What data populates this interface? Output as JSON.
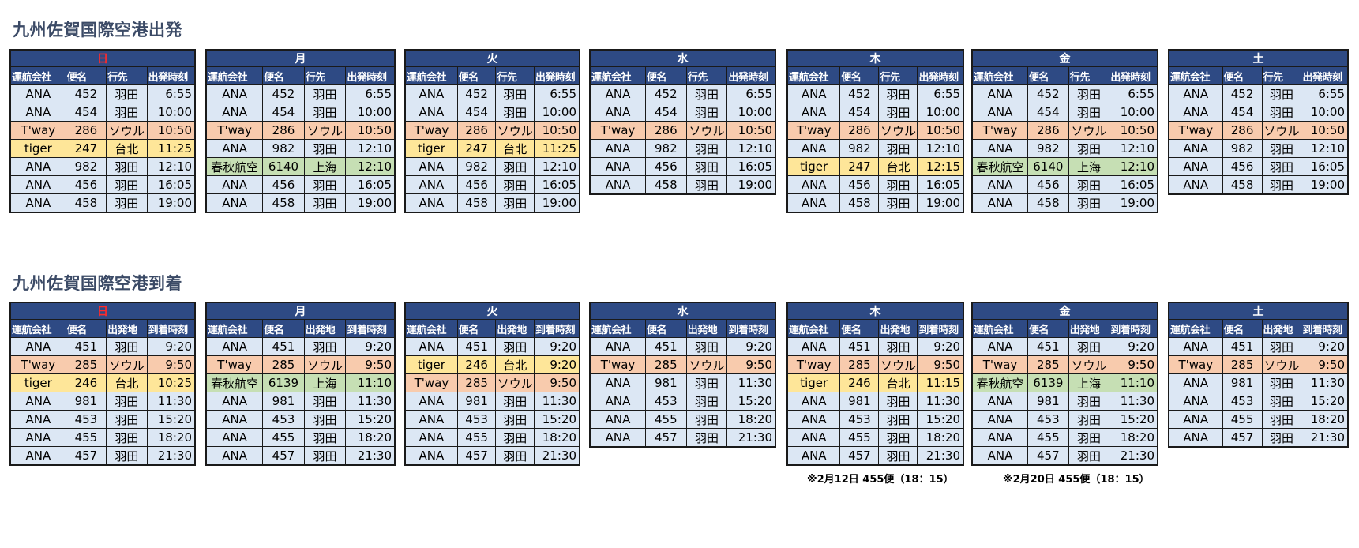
{
  "departures": {
    "title": "九州佐賀国際空港出発",
    "columns": [
      "運航会社",
      "便名",
      "行先",
      "出発時刻"
    ],
    "days": [
      {
        "name": "日",
        "rows": [
          {
            "c": "ANA",
            "n": "452",
            "p": "羽田",
            "t": "6:55"
          },
          {
            "c": "ANA",
            "n": "454",
            "p": "羽田",
            "t": "10:00"
          },
          {
            "c": "T'way",
            "n": "286",
            "p": "ソウル",
            "t": "10:50"
          },
          {
            "c": "tiger",
            "n": "247",
            "p": "台北",
            "t": "11:25"
          },
          {
            "c": "ANA",
            "n": "982",
            "p": "羽田",
            "t": "12:10"
          },
          {
            "c": "ANA",
            "n": "456",
            "p": "羽田",
            "t": "16:05"
          },
          {
            "c": "ANA",
            "n": "458",
            "p": "羽田",
            "t": "19:00"
          }
        ]
      },
      {
        "name": "月",
        "rows": [
          {
            "c": "ANA",
            "n": "452",
            "p": "羽田",
            "t": "6:55"
          },
          {
            "c": "ANA",
            "n": "454",
            "p": "羽田",
            "t": "10:00"
          },
          {
            "c": "T'way",
            "n": "286",
            "p": "ソウル",
            "t": "10:50"
          },
          {
            "c": "ANA",
            "n": "982",
            "p": "羽田",
            "t": "12:10"
          },
          {
            "c": "春秋航空",
            "n": "6140",
            "p": "上海",
            "t": "12:10"
          },
          {
            "c": "ANA",
            "n": "456",
            "p": "羽田",
            "t": "16:05"
          },
          {
            "c": "ANA",
            "n": "458",
            "p": "羽田",
            "t": "19:00"
          }
        ]
      },
      {
        "name": "火",
        "rows": [
          {
            "c": "ANA",
            "n": "452",
            "p": "羽田",
            "t": "6:55"
          },
          {
            "c": "ANA",
            "n": "454",
            "p": "羽田",
            "t": "10:00"
          },
          {
            "c": "T'way",
            "n": "286",
            "p": "ソウル",
            "t": "10:50"
          },
          {
            "c": "tiger",
            "n": "247",
            "p": "台北",
            "t": "11:25"
          },
          {
            "c": "ANA",
            "n": "982",
            "p": "羽田",
            "t": "12:10"
          },
          {
            "c": "ANA",
            "n": "456",
            "p": "羽田",
            "t": "16:05"
          },
          {
            "c": "ANA",
            "n": "458",
            "p": "羽田",
            "t": "19:00"
          }
        ]
      },
      {
        "name": "水",
        "rows": [
          {
            "c": "ANA",
            "n": "452",
            "p": "羽田",
            "t": "6:55"
          },
          {
            "c": "ANA",
            "n": "454",
            "p": "羽田",
            "t": "10:00"
          },
          {
            "c": "T'way",
            "n": "286",
            "p": "ソウル",
            "t": "10:50"
          },
          {
            "c": "ANA",
            "n": "982",
            "p": "羽田",
            "t": "12:10"
          },
          {
            "c": "ANA",
            "n": "456",
            "p": "羽田",
            "t": "16:05"
          },
          {
            "c": "ANA",
            "n": "458",
            "p": "羽田",
            "t": "19:00"
          }
        ]
      },
      {
        "name": "木",
        "rows": [
          {
            "c": "ANA",
            "n": "452",
            "p": "羽田",
            "t": "6:55"
          },
          {
            "c": "ANA",
            "n": "454",
            "p": "羽田",
            "t": "10:00"
          },
          {
            "c": "T'way",
            "n": "286",
            "p": "ソウル",
            "t": "10:50"
          },
          {
            "c": "ANA",
            "n": "982",
            "p": "羽田",
            "t": "12:10"
          },
          {
            "c": "tiger",
            "n": "247",
            "p": "台北",
            "t": "12:15"
          },
          {
            "c": "ANA",
            "n": "456",
            "p": "羽田",
            "t": "16:05"
          },
          {
            "c": "ANA",
            "n": "458",
            "p": "羽田",
            "t": "19:00"
          }
        ]
      },
      {
        "name": "金",
        "rows": [
          {
            "c": "ANA",
            "n": "452",
            "p": "羽田",
            "t": "6:55"
          },
          {
            "c": "ANA",
            "n": "454",
            "p": "羽田",
            "t": "10:00"
          },
          {
            "c": "T'way",
            "n": "286",
            "p": "ソウル",
            "t": "10:50"
          },
          {
            "c": "ANA",
            "n": "982",
            "p": "羽田",
            "t": "12:10"
          },
          {
            "c": "春秋航空",
            "n": "6140",
            "p": "上海",
            "t": "12:10"
          },
          {
            "c": "ANA",
            "n": "456",
            "p": "羽田",
            "t": "16:05"
          },
          {
            "c": "ANA",
            "n": "458",
            "p": "羽田",
            "t": "19:00"
          }
        ]
      },
      {
        "name": "土",
        "rows": [
          {
            "c": "ANA",
            "n": "452",
            "p": "羽田",
            "t": "6:55"
          },
          {
            "c": "ANA",
            "n": "454",
            "p": "羽田",
            "t": "10:00"
          },
          {
            "c": "T'way",
            "n": "286",
            "p": "ソウル",
            "t": "10:50"
          },
          {
            "c": "ANA",
            "n": "982",
            "p": "羽田",
            "t": "12:10"
          },
          {
            "c": "ANA",
            "n": "456",
            "p": "羽田",
            "t": "16:05"
          },
          {
            "c": "ANA",
            "n": "458",
            "p": "羽田",
            "t": "19:00"
          }
        ]
      }
    ]
  },
  "arrivals": {
    "title": "九州佐賀国際空港到着",
    "columns": [
      "運航会社",
      "便名",
      "出発地",
      "到着時刻"
    ],
    "days": [
      {
        "name": "日",
        "rows": [
          {
            "c": "ANA",
            "n": "451",
            "p": "羽田",
            "t": "9:20"
          },
          {
            "c": "T'way",
            "n": "285",
            "p": "ソウル",
            "t": "9:50"
          },
          {
            "c": "tiger",
            "n": "246",
            "p": "台北",
            "t": "10:25"
          },
          {
            "c": "ANA",
            "n": "981",
            "p": "羽田",
            "t": "11:30"
          },
          {
            "c": "ANA",
            "n": "453",
            "p": "羽田",
            "t": "15:20"
          },
          {
            "c": "ANA",
            "n": "455",
            "p": "羽田",
            "t": "18:20"
          },
          {
            "c": "ANA",
            "n": "457",
            "p": "羽田",
            "t": "21:30"
          }
        ]
      },
      {
        "name": "月",
        "rows": [
          {
            "c": "ANA",
            "n": "451",
            "p": "羽田",
            "t": "9:20"
          },
          {
            "c": "T'way",
            "n": "285",
            "p": "ソウル",
            "t": "9:50"
          },
          {
            "c": "春秋航空",
            "n": "6139",
            "p": "上海",
            "t": "11:10"
          },
          {
            "c": "ANA",
            "n": "981",
            "p": "羽田",
            "t": "11:30"
          },
          {
            "c": "ANA",
            "n": "453",
            "p": "羽田",
            "t": "15:20"
          },
          {
            "c": "ANA",
            "n": "455",
            "p": "羽田",
            "t": "18:20"
          },
          {
            "c": "ANA",
            "n": "457",
            "p": "羽田",
            "t": "21:30"
          }
        ]
      },
      {
        "name": "火",
        "rows": [
          {
            "c": "ANA",
            "n": "451",
            "p": "羽田",
            "t": "9:20"
          },
          {
            "c": "tiger",
            "n": "246",
            "p": "台北",
            "t": "9:20"
          },
          {
            "c": "T'way",
            "n": "285",
            "p": "ソウル",
            "t": "9:50"
          },
          {
            "c": "ANA",
            "n": "981",
            "p": "羽田",
            "t": "11:30"
          },
          {
            "c": "ANA",
            "n": "453",
            "p": "羽田",
            "t": "15:20"
          },
          {
            "c": "ANA",
            "n": "455",
            "p": "羽田",
            "t": "18:20"
          },
          {
            "c": "ANA",
            "n": "457",
            "p": "羽田",
            "t": "21:30"
          }
        ]
      },
      {
        "name": "水",
        "rows": [
          {
            "c": "ANA",
            "n": "451",
            "p": "羽田",
            "t": "9:20"
          },
          {
            "c": "T'way",
            "n": "285",
            "p": "ソウル",
            "t": "9:50"
          },
          {
            "c": "ANA",
            "n": "981",
            "p": "羽田",
            "t": "11:30"
          },
          {
            "c": "ANA",
            "n": "453",
            "p": "羽田",
            "t": "15:20"
          },
          {
            "c": "ANA",
            "n": "455",
            "p": "羽田",
            "t": "18:20"
          },
          {
            "c": "ANA",
            "n": "457",
            "p": "羽田",
            "t": "21:30"
          }
        ]
      },
      {
        "name": "木",
        "rows": [
          {
            "c": "ANA",
            "n": "451",
            "p": "羽田",
            "t": "9:20"
          },
          {
            "c": "T'way",
            "n": "285",
            "p": "ソウル",
            "t": "9:50"
          },
          {
            "c": "tiger",
            "n": "246",
            "p": "台北",
            "t": "11:15"
          },
          {
            "c": "ANA",
            "n": "981",
            "p": "羽田",
            "t": "11:30"
          },
          {
            "c": "ANA",
            "n": "453",
            "p": "羽田",
            "t": "15:20"
          },
          {
            "c": "ANA",
            "n": "455",
            "p": "羽田",
            "t": "18:20"
          },
          {
            "c": "ANA",
            "n": "457",
            "p": "羽田",
            "t": "21:30"
          }
        ]
      },
      {
        "name": "金",
        "rows": [
          {
            "c": "ANA",
            "n": "451",
            "p": "羽田",
            "t": "9:20"
          },
          {
            "c": "T'way",
            "n": "285",
            "p": "ソウル",
            "t": "9:50"
          },
          {
            "c": "春秋航空",
            "n": "6139",
            "p": "上海",
            "t": "11:10"
          },
          {
            "c": "ANA",
            "n": "981",
            "p": "羽田",
            "t": "11:30"
          },
          {
            "c": "ANA",
            "n": "453",
            "p": "羽田",
            "t": "15:20"
          },
          {
            "c": "ANA",
            "n": "455",
            "p": "羽田",
            "t": "18:20"
          },
          {
            "c": "ANA",
            "n": "457",
            "p": "羽田",
            "t": "21:30"
          }
        ]
      },
      {
        "name": "土",
        "rows": [
          {
            "c": "ANA",
            "n": "451",
            "p": "羽田",
            "t": "9:20"
          },
          {
            "c": "T'way",
            "n": "285",
            "p": "ソウル",
            "t": "9:50"
          },
          {
            "c": "ANA",
            "n": "981",
            "p": "羽田",
            "t": "11:30"
          },
          {
            "c": "ANA",
            "n": "453",
            "p": "羽田",
            "t": "15:20"
          },
          {
            "c": "ANA",
            "n": "455",
            "p": "羽田",
            "t": "18:20"
          },
          {
            "c": "ANA",
            "n": "457",
            "p": "羽田",
            "t": "21:30"
          }
        ]
      }
    ]
  },
  "notes": {
    "thursday": "※2月12日 455便（18：15）",
    "friday": "※2月20日 455便（18：15）"
  },
  "colors": {
    "header_bg": "#2e4a84",
    "sunday_text": "#ff2a2a",
    "row_default": "#dce7f4",
    "row_tway": "#f8cbad",
    "row_tiger": "#fee699",
    "row_spring": "#c6dfb4",
    "title_text": "#3b4a66"
  }
}
